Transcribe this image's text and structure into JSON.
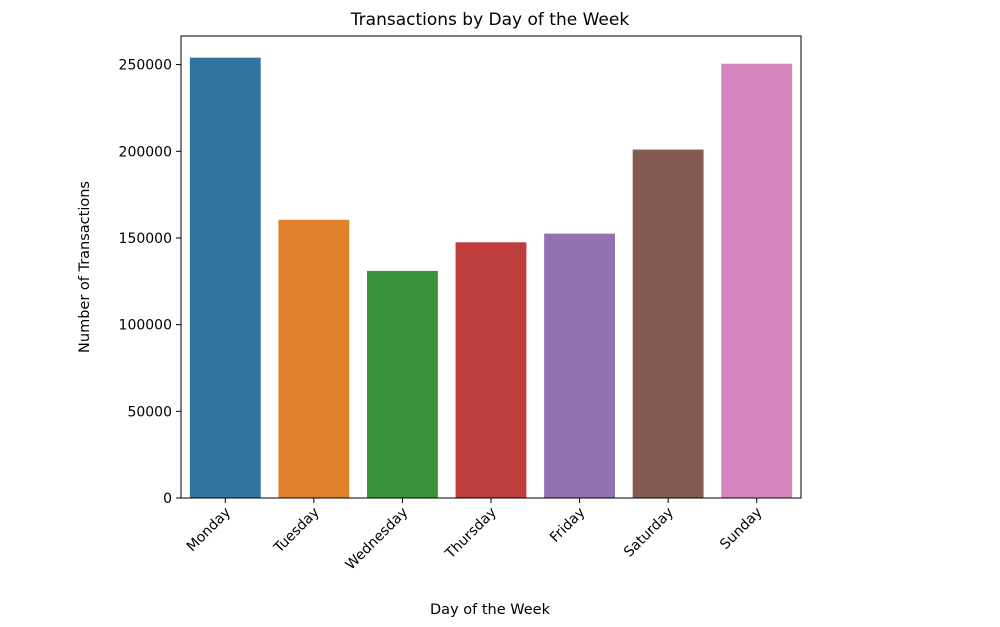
{
  "chart_data": {
    "type": "bar",
    "title": "Transactions by Day of the Week",
    "xlabel": "Day of the Week",
    "ylabel": "Number of Transactions",
    "categories": [
      "Monday",
      "Tuesday",
      "Wednesday",
      "Thursday",
      "Friday",
      "Saturday",
      "Sunday"
    ],
    "values": [
      254000,
      160500,
      131000,
      147500,
      152500,
      201000,
      250500
    ],
    "colors": [
      "#3274a1",
      "#e1812c",
      "#3a923a",
      "#c03d3e",
      "#9372b2",
      "#845b53",
      "#d684bd"
    ],
    "ylim": [
      0,
      266500
    ],
    "yticks": [
      0,
      50000,
      100000,
      150000,
      200000,
      250000
    ],
    "ytick_labels": [
      "0",
      "50000",
      "100000",
      "150000",
      "200000",
      "250000"
    ],
    "grid": false,
    "legend": "none"
  }
}
